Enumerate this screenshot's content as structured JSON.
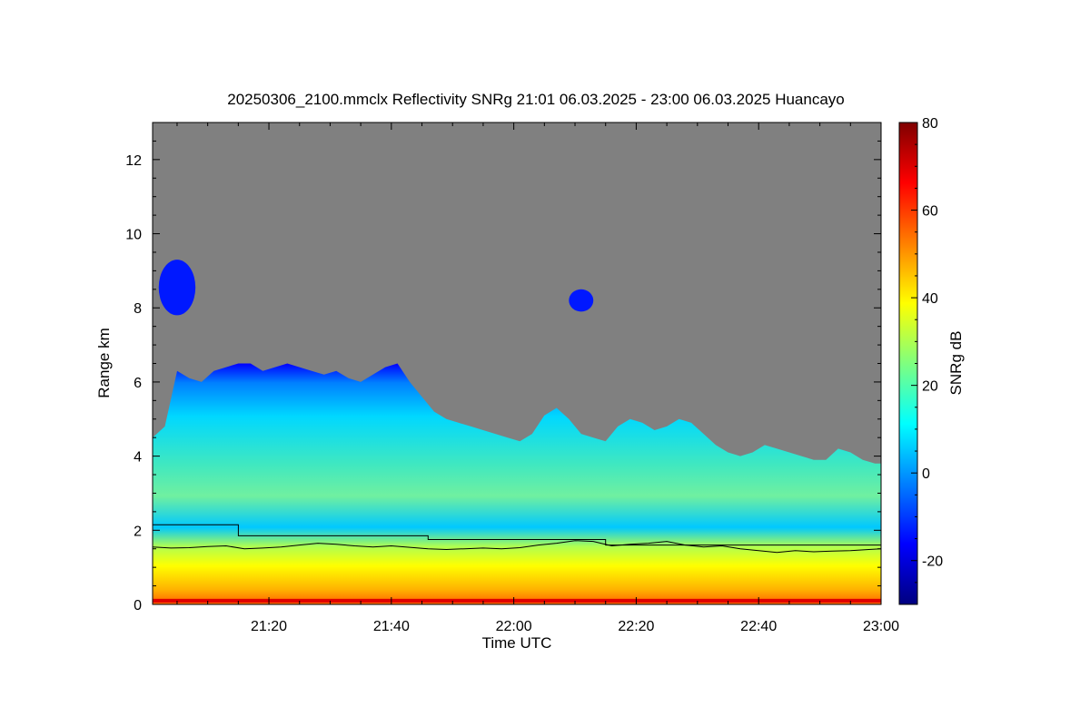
{
  "chart_data": {
    "type": "heatmap",
    "title": "20250306_2100.mmclx Reflectivity SNRg   21:01 06.03.2025 - 23:00 06.03.2025 Huancayo",
    "xlabel": "Time UTC",
    "ylabel": "Range km",
    "colorbar_label": "SNRg dB",
    "x_unit_minutes_utc": true,
    "xlim": [
      1261,
      1380
    ],
    "ylim": [
      0,
      13
    ],
    "clim": [
      -30,
      80
    ],
    "x_ticks": [
      {
        "value": 1280,
        "label": "21:20"
      },
      {
        "value": 1300,
        "label": "21:40"
      },
      {
        "value": 1320,
        "label": "22:00"
      },
      {
        "value": 1340,
        "label": "22:20"
      },
      {
        "value": 1360,
        "label": "22:40"
      },
      {
        "value": 1380,
        "label": "23:00"
      }
    ],
    "y_ticks": [
      {
        "value": 0,
        "label": "0"
      },
      {
        "value": 2,
        "label": "2"
      },
      {
        "value": 4,
        "label": "4"
      },
      {
        "value": 6,
        "label": "6"
      },
      {
        "value": 8,
        "label": "8"
      },
      {
        "value": 10,
        "label": "10"
      },
      {
        "value": 12,
        "label": "12"
      }
    ],
    "colorbar_ticks": [
      {
        "value": -20,
        "label": "-20"
      },
      {
        "value": 0,
        "label": "0"
      },
      {
        "value": 20,
        "label": "20"
      },
      {
        "value": 40,
        "label": "40"
      },
      {
        "value": 60,
        "label": "60"
      },
      {
        "value": 80,
        "label": "80"
      }
    ],
    "no_signal_color": "#808080",
    "colormap": [
      "#00007f",
      "#0000ff",
      "#007fff",
      "#00ffff",
      "#7fff7f",
      "#ffff00",
      "#ff7f00",
      "#ff0000",
      "#7f0000"
    ],
    "cloud_top_km": {
      "x": [
        1261,
        1263,
        1265,
        1267,
        1269,
        1271,
        1273,
        1275,
        1277,
        1279,
        1281,
        1283,
        1285,
        1287,
        1289,
        1291,
        1293,
        1295,
        1297,
        1299,
        1301,
        1303,
        1305,
        1307,
        1309,
        1311,
        1313,
        1315,
        1317,
        1319,
        1321,
        1323,
        1325,
        1327,
        1329,
        1331,
        1333,
        1335,
        1337,
        1339,
        1341,
        1343,
        1345,
        1347,
        1349,
        1351,
        1353,
        1355,
        1357,
        1359,
        1361,
        1363,
        1365,
        1367,
        1369,
        1371,
        1373,
        1375,
        1377,
        1379,
        1380
      ],
      "values": [
        4.5,
        4.8,
        6.3,
        6.1,
        6.0,
        6.3,
        6.4,
        6.5,
        6.5,
        6.3,
        6.4,
        6.5,
        6.4,
        6.3,
        6.2,
        6.3,
        6.1,
        6.0,
        6.2,
        6.4,
        6.5,
        6.0,
        5.6,
        5.2,
        5.0,
        4.9,
        4.8,
        4.7,
        4.6,
        4.5,
        4.4,
        4.6,
        5.1,
        5.3,
        5.0,
        4.6,
        4.5,
        4.4,
        4.8,
        5.0,
        4.9,
        4.7,
        4.8,
        5.0,
        4.9,
        4.6,
        4.3,
        4.1,
        4.0,
        4.1,
        4.3,
        4.2,
        4.1,
        4.0,
        3.9,
        3.9,
        4.2,
        4.1,
        3.9,
        3.8,
        3.8
      ]
    },
    "features_km": {
      "detached_cloud_1": {
        "x": [
          1262,
          1268
        ],
        "y": [
          7.8,
          9.3
        ]
      },
      "detached_cloud_2": {
        "x": [
          1329,
          1333
        ],
        "y": [
          7.9,
          8.5
        ]
      }
    },
    "series": [
      {
        "type": "step",
        "x": [
          1261,
          1275,
          1275,
          1306,
          1306,
          1335,
          1335,
          1380
        ],
        "values": [
          2.15,
          2.15,
          1.85,
          1.85,
          1.75,
          1.75,
          1.6,
          1.6
        ]
      },
      {
        "type": "line",
        "x": [
          1261,
          1264,
          1267,
          1270,
          1273,
          1276,
          1279,
          1282,
          1285,
          1288,
          1291,
          1294,
          1297,
          1300,
          1303,
          1306,
          1309,
          1312,
          1315,
          1318,
          1321,
          1324,
          1327,
          1330,
          1333,
          1336,
          1339,
          1342,
          1345,
          1348,
          1351,
          1354,
          1357,
          1360,
          1363,
          1366,
          1369,
          1372,
          1375,
          1378,
          1380
        ],
        "values": [
          1.55,
          1.52,
          1.53,
          1.56,
          1.58,
          1.5,
          1.52,
          1.55,
          1.6,
          1.65,
          1.62,
          1.58,
          1.55,
          1.58,
          1.54,
          1.5,
          1.48,
          1.5,
          1.52,
          1.5,
          1.53,
          1.6,
          1.65,
          1.72,
          1.7,
          1.58,
          1.62,
          1.65,
          1.7,
          1.6,
          1.55,
          1.58,
          1.5,
          1.45,
          1.4,
          1.45,
          1.42,
          1.44,
          1.45,
          1.48,
          1.5
        ]
      }
    ]
  }
}
